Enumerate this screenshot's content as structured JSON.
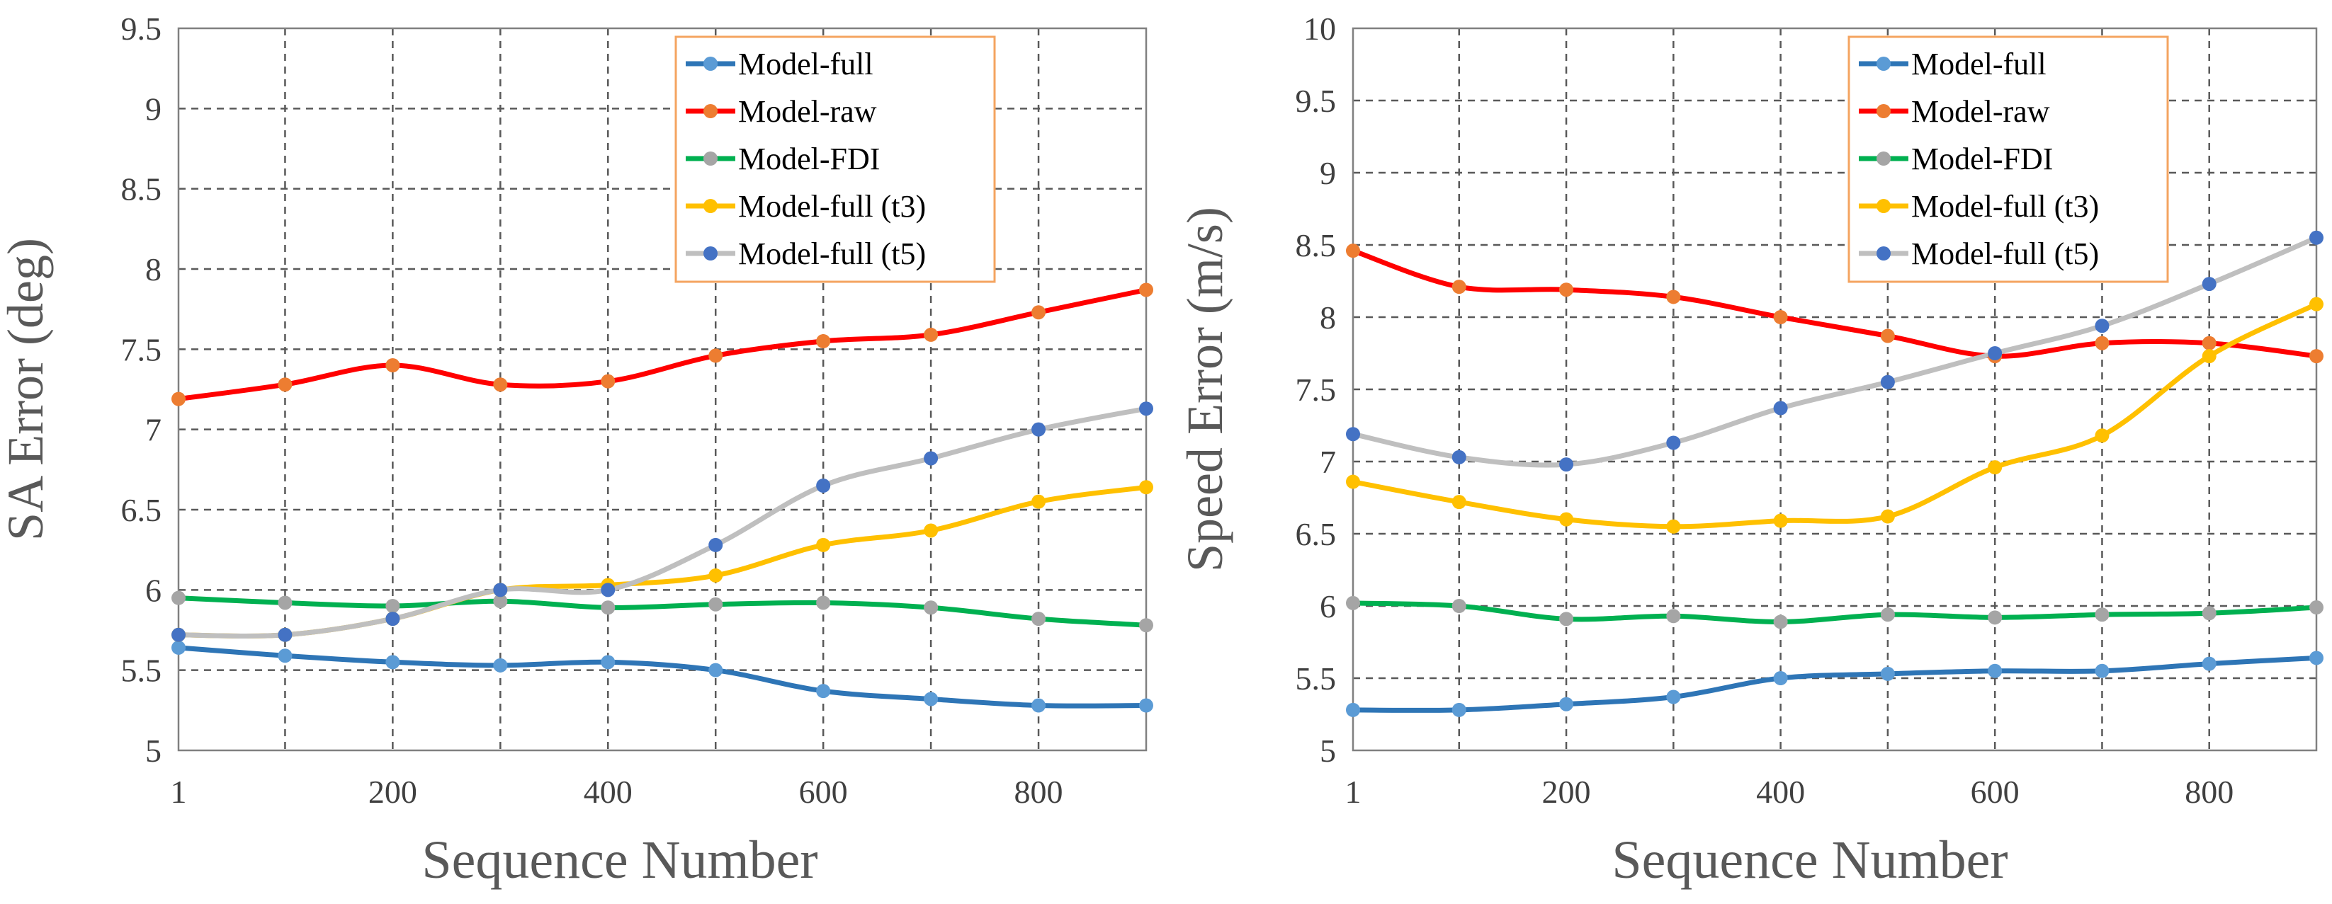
{
  "chart_data": [
    {
      "type": "line",
      "title": "",
      "xlabel": "Sequence Number",
      "ylabel": "SA Error (deg)",
      "x": [
        1,
        100,
        200,
        300,
        400,
        500,
        600,
        700,
        800,
        900
      ],
      "xticks": [
        1,
        200,
        400,
        600,
        800
      ],
      "xlim": [
        1,
        900
      ],
      "ylim": [
        5,
        9.5
      ],
      "yticks": [
        5,
        5.5,
        6,
        6.5,
        7,
        7.5,
        8,
        8.5,
        9,
        9.5
      ],
      "ytick_labels": [
        "5",
        "5.5",
        "6",
        "6.5",
        "7",
        "7.5",
        "8",
        "8.5",
        "9",
        "9.5"
      ],
      "grid": true,
      "legend_position": "top-right",
      "series": [
        {
          "name": "Model-full",
          "line_color": "#2e75b6",
          "marker_color": "#5b9bd5",
          "values": [
            5.64,
            5.59,
            5.55,
            5.53,
            5.55,
            5.5,
            5.37,
            5.32,
            5.28,
            5.28
          ]
        },
        {
          "name": "Model-raw",
          "line_color": "#ff0000",
          "marker_color": "#ed7d31",
          "values": [
            7.19,
            7.28,
            7.4,
            7.28,
            7.3,
            7.46,
            7.55,
            7.59,
            7.73,
            7.87
          ]
        },
        {
          "name": "Model-FDI",
          "line_color": "#00b050",
          "marker_color": "#a5a5a5",
          "values": [
            5.95,
            5.92,
            5.9,
            5.93,
            5.89,
            5.91,
            5.92,
            5.89,
            5.82,
            5.78
          ]
        },
        {
          "name": "Model-full (t3)",
          "line_color": "#ffc000",
          "marker_color": "#ffc000",
          "values": [
            5.72,
            5.72,
            5.82,
            6.0,
            6.03,
            6.09,
            6.28,
            6.37,
            6.55,
            6.64
          ]
        },
        {
          "name": "Model-full (t5)",
          "line_color": "#bfbfbf",
          "marker_color": "#4472c4",
          "values": [
            5.72,
            5.72,
            5.82,
            6.0,
            6.0,
            6.28,
            6.65,
            6.82,
            7.0,
            7.13
          ]
        }
      ]
    },
    {
      "type": "line",
      "title": "",
      "xlabel": "Sequence Number",
      "ylabel": "Speed Error (m/s)",
      "x": [
        1,
        100,
        200,
        300,
        400,
        500,
        600,
        700,
        800,
        900
      ],
      "xticks": [
        1,
        200,
        400,
        600,
        800
      ],
      "xlim": [
        1,
        900
      ],
      "ylim": [
        5,
        10
      ],
      "yticks": [
        5,
        5.5,
        6,
        6.5,
        7,
        7.5,
        8,
        8.5,
        9,
        9.5,
        10
      ],
      "ytick_labels": [
        "5",
        "5.5",
        "6",
        "6.5",
        "7",
        "7.5",
        "8",
        "8.5",
        "9",
        "9.5",
        "10"
      ],
      "grid": true,
      "legend_position": "top-right",
      "series": [
        {
          "name": "Model-full",
          "line_color": "#2e75b6",
          "marker_color": "#5b9bd5",
          "values": [
            5.28,
            5.28,
            5.32,
            5.37,
            5.5,
            5.53,
            5.55,
            5.55,
            5.6,
            5.64
          ]
        },
        {
          "name": "Model-raw",
          "line_color": "#ff0000",
          "marker_color": "#ed7d31",
          "values": [
            8.46,
            8.21,
            8.19,
            8.14,
            8.0,
            7.87,
            7.73,
            7.82,
            7.82,
            7.73
          ]
        },
        {
          "name": "Model-FDI",
          "line_color": "#00b050",
          "marker_color": "#a5a5a5",
          "values": [
            6.02,
            6.0,
            5.91,
            5.93,
            5.89,
            5.94,
            5.92,
            5.94,
            5.95,
            5.99
          ]
        },
        {
          "name": "Model-full (t3)",
          "line_color": "#ffc000",
          "marker_color": "#ffc000",
          "values": [
            6.86,
            6.72,
            6.6,
            6.55,
            6.59,
            6.62,
            6.96,
            7.18,
            7.73,
            8.09
          ]
        },
        {
          "name": "Model-full (t5)",
          "line_color": "#bfbfbf",
          "marker_color": "#4472c4",
          "values": [
            7.19,
            7.03,
            6.98,
            7.13,
            7.37,
            7.55,
            7.75,
            7.94,
            8.23,
            8.55
          ]
        }
      ]
    }
  ]
}
